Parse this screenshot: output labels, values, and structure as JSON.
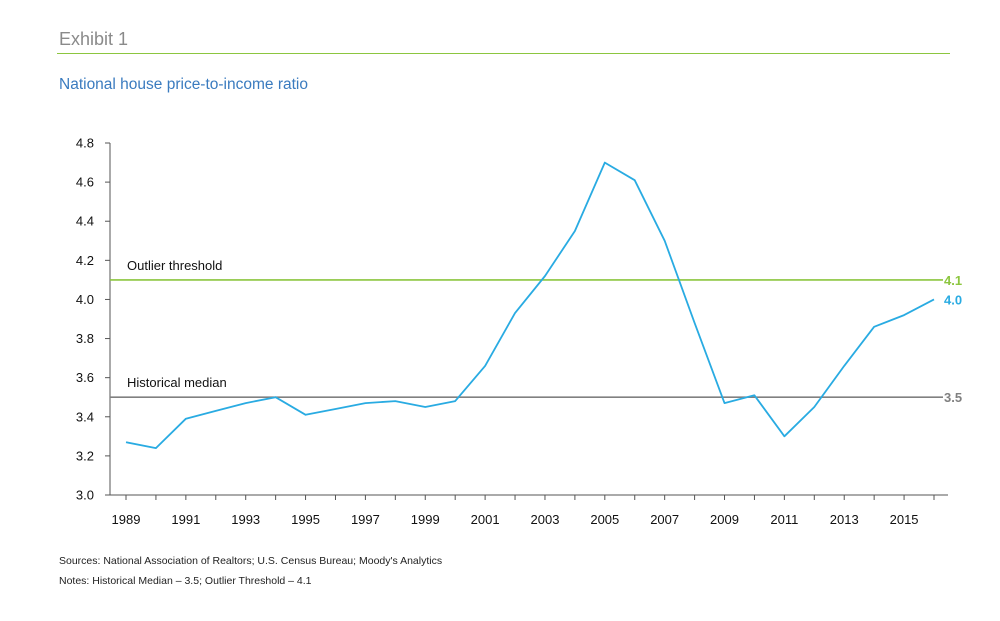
{
  "header": {
    "exhibit": "Exhibit 1",
    "title": "National house price-to-income ratio"
  },
  "footnotes": {
    "sources": "Sources: National Association of Realtors; U.S. Census Bureau; Moody's Analytics",
    "notes": "Notes: Historical Median – 3.5; Outlier Threshold – 4.1"
  },
  "colors": {
    "series": "#29abe2",
    "threshold": "#8cc63f",
    "median": "#808080",
    "axis": "#555555",
    "title": "#3a7bbf"
  },
  "chart_data": {
    "type": "line",
    "title": "National house price-to-income ratio",
    "xlabel": "",
    "ylabel": "",
    "x": [
      1989,
      1990,
      1991,
      1992,
      1993,
      1994,
      1995,
      1996,
      1997,
      1998,
      1999,
      2000,
      2001,
      2002,
      2003,
      2004,
      2005,
      2006,
      2007,
      2008,
      2009,
      2010,
      2011,
      2012,
      2013,
      2014,
      2015,
      2016
    ],
    "series": [
      {
        "values": [
          3.27,
          3.24,
          3.39,
          3.43,
          3.47,
          3.5,
          3.41,
          3.44,
          3.47,
          3.48,
          3.45,
          3.48,
          3.66,
          3.93,
          4.12,
          4.35,
          4.7,
          4.61,
          4.3,
          3.88,
          3.47,
          3.51,
          3.3,
          3.45,
          3.66,
          3.86,
          3.92,
          4.0
        ]
      }
    ],
    "xticks": [
      1989,
      1991,
      1993,
      1995,
      1997,
      1999,
      2001,
      2003,
      2005,
      2007,
      2009,
      2011,
      2013,
      2015
    ],
    "ylim": [
      3.0,
      4.8
    ],
    "yticks": [
      "3.0",
      "3.2",
      "3.4",
      "3.6",
      "3.8",
      "4.0",
      "4.2",
      "4.4",
      "4.6",
      "4.8"
    ],
    "reference_lines": [
      {
        "label": "Outlier threshold",
        "value": 4.1,
        "value_label": "4.1",
        "color": "#8cc63f"
      },
      {
        "label": "Historical median",
        "value": 3.5,
        "value_label": "3.5",
        "color": "#808080"
      }
    ],
    "end_label": "4.0",
    "grid": false,
    "legend": "none"
  }
}
